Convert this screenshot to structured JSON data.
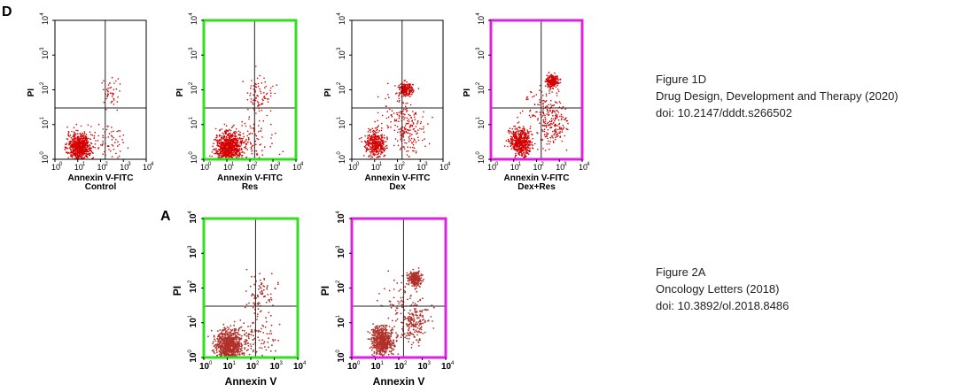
{
  "panel_letters": {
    "top": "D",
    "bottom": "A"
  },
  "colors": {
    "dot_top": "#d40000",
    "dot_bottom": "#b0302a",
    "frame_green": "#33dd22",
    "frame_magenta": "#e020e0",
    "frame_black": "#000000"
  },
  "captions": [
    {
      "line1": "Figure 1D",
      "line2": "Drug Design, Development and Therapy (2020)",
      "line3": "doi: 10.2147/dddt.s266502"
    },
    {
      "line1": "Figure 2A",
      "line2": "Oncology Letters (2018)",
      "line3": "doi: 10.3892/ol.2018.8486"
    }
  ],
  "chart_data": [
    {
      "type": "scatter",
      "title": "Control",
      "xlabel": "Annexin V-FITC",
      "ylabel": "PI",
      "xscale": "log",
      "yscale": "log",
      "xlim": [
        1,
        10000
      ],
      "ylim": [
        1,
        10000
      ],
      "x_ticks": [
        "10",
        "10",
        "10",
        "10",
        "10"
      ],
      "x_tick_exponents": [
        "0",
        "1",
        "2",
        "3",
        "4"
      ],
      "y_ticks": [
        "10",
        "10",
        "10",
        "10",
        "10"
      ],
      "y_tick_exponents": [
        "0",
        "1",
        "2",
        "3",
        "4"
      ],
      "quadrant_gate": {
        "x": 160,
        "y": 30
      },
      "frame": "black",
      "populations": [
        {
          "center": [
            12,
            2.2
          ],
          "spread": [
            0.26,
            0.2
          ],
          "count": 700
        },
        {
          "center": [
            160,
            3
          ],
          "spread": [
            0.4,
            0.3
          ],
          "count": 70
        },
        {
          "center": [
            280,
            90
          ],
          "spread": [
            0.18,
            0.2
          ],
          "count": 45
        }
      ]
    },
    {
      "type": "scatter",
      "title": "Res",
      "xlabel": "Annexin V-FITC",
      "ylabel": "PI",
      "xscale": "log",
      "yscale": "log",
      "xlim": [
        1,
        10000
      ],
      "ylim": [
        1,
        10000
      ],
      "x_ticks": [
        "10",
        "10",
        "10",
        "10",
        "10"
      ],
      "x_tick_exponents": [
        "0",
        "1",
        "2",
        "3",
        "4"
      ],
      "y_ticks": [
        "10",
        "10",
        "10",
        "10",
        "10"
      ],
      "y_tick_exponents": [
        "0",
        "1",
        "2",
        "3",
        "4"
      ],
      "quadrant_gate": {
        "x": 160,
        "y": 30
      },
      "frame": "green",
      "populations": [
        {
          "center": [
            12,
            2.2
          ],
          "spread": [
            0.28,
            0.22
          ],
          "count": 750
        },
        {
          "center": [
            130,
            3.5
          ],
          "spread": [
            0.45,
            0.32
          ],
          "count": 110
        },
        {
          "center": [
            250,
            70
          ],
          "spread": [
            0.3,
            0.25
          ],
          "count": 80
        }
      ]
    },
    {
      "type": "scatter",
      "title": "Dex",
      "xlabel": "Annexin V-FITC",
      "ylabel": "PI",
      "xscale": "log",
      "yscale": "log",
      "xlim": [
        1,
        10000
      ],
      "ylim": [
        1,
        10000
      ],
      "x_ticks": [
        "10",
        "10",
        "10",
        "10",
        "10"
      ],
      "x_tick_exponents": [
        "0",
        "1",
        "2",
        "3",
        "4"
      ],
      "y_ticks": [
        "10",
        "10",
        "10",
        "10",
        "10"
      ],
      "y_tick_exponents": [
        "0",
        "1",
        "2",
        "3",
        "4"
      ],
      "quadrant_gate": {
        "x": 160,
        "y": 30
      },
      "frame": "black",
      "populations": [
        {
          "center": [
            11,
            2.8
          ],
          "spread": [
            0.22,
            0.18
          ],
          "count": 380
        },
        {
          "center": [
            220,
            100
          ],
          "spread": [
            0.15,
            0.1
          ],
          "count": 200
        },
        {
          "center": [
            300,
            6
          ],
          "spread": [
            0.35,
            0.35
          ],
          "count": 160
        },
        {
          "center": [
            70,
            30
          ],
          "spread": [
            0.4,
            0.4
          ],
          "count": 60
        }
      ]
    },
    {
      "type": "scatter",
      "title": "Dex+Res",
      "xlabel": "Annexin V-FITC",
      "ylabel": "PI",
      "xscale": "log",
      "yscale": "log",
      "xlim": [
        1,
        10000
      ],
      "ylim": [
        1,
        10000
      ],
      "x_ticks": [
        "10",
        "10",
        "10",
        "10",
        "10"
      ],
      "x_tick_exponents": [
        "0",
        "1",
        "2",
        "3",
        "4"
      ],
      "y_ticks": [
        "10",
        "10",
        "10",
        "10",
        "10"
      ],
      "y_tick_exponents": [
        "0",
        "1",
        "2",
        "3",
        "4"
      ],
      "quadrant_gate": {
        "x": 160,
        "y": 30
      },
      "frame": "magenta",
      "populations": [
        {
          "center": [
            20,
            3
          ],
          "spread": [
            0.22,
            0.2
          ],
          "count": 560
        },
        {
          "center": [
            500,
            180
          ],
          "spread": [
            0.15,
            0.1
          ],
          "count": 220
        },
        {
          "center": [
            500,
            10
          ],
          "spread": [
            0.3,
            0.3
          ],
          "count": 180
        },
        {
          "center": [
            140,
            40
          ],
          "spread": [
            0.4,
            0.4
          ],
          "count": 80
        }
      ]
    },
    {
      "type": "scatter",
      "title": "",
      "xlabel": "Annexin V",
      "ylabel": "PI",
      "xscale": "log",
      "yscale": "log",
      "xlim": [
        1,
        10000
      ],
      "ylim": [
        1,
        10000
      ],
      "x_ticks": [
        "10",
        "10",
        "10",
        "10",
        "10"
      ],
      "x_tick_exponents": [
        "0",
        "1",
        "2",
        "3",
        "4"
      ],
      "y_ticks": [
        "10",
        "10",
        "10",
        "10",
        "10"
      ],
      "y_tick_exponents": [
        "0",
        "1",
        "2",
        "3",
        "4"
      ],
      "quadrant_gate": {
        "x": 160,
        "y": 30
      },
      "frame": "green",
      "populations": [
        {
          "center": [
            12,
            2.2
          ],
          "spread": [
            0.28,
            0.22
          ],
          "count": 750
        },
        {
          "center": [
            130,
            3.5
          ],
          "spread": [
            0.45,
            0.32
          ],
          "count": 110
        },
        {
          "center": [
            250,
            70
          ],
          "spread": [
            0.3,
            0.25
          ],
          "count": 80
        }
      ]
    },
    {
      "type": "scatter",
      "title": "",
      "xlabel": "Annexin V",
      "ylabel": "PI",
      "xscale": "log",
      "yscale": "log",
      "xlim": [
        1,
        10000
      ],
      "ylim": [
        1,
        10000
      ],
      "x_ticks": [
        "10",
        "10",
        "10",
        "10",
        "10"
      ],
      "x_tick_exponents": [
        "0",
        "1",
        "2",
        "3",
        "4"
      ],
      "y_ticks": [
        "10",
        "10",
        "10",
        "10",
        "10"
      ],
      "y_tick_exponents": [
        "0",
        "1",
        "2",
        "3",
        "4"
      ],
      "quadrant_gate": {
        "x": 160,
        "y": 30
      },
      "frame": "magenta",
      "populations": [
        {
          "center": [
            20,
            3
          ],
          "spread": [
            0.22,
            0.2
          ],
          "count": 560
        },
        {
          "center": [
            500,
            180
          ],
          "spread": [
            0.15,
            0.1
          ],
          "count": 220
        },
        {
          "center": [
            500,
            10
          ],
          "spread": [
            0.3,
            0.3
          ],
          "count": 180
        },
        {
          "center": [
            140,
            40
          ],
          "spread": [
            0.4,
            0.4
          ],
          "count": 80
        }
      ]
    }
  ]
}
